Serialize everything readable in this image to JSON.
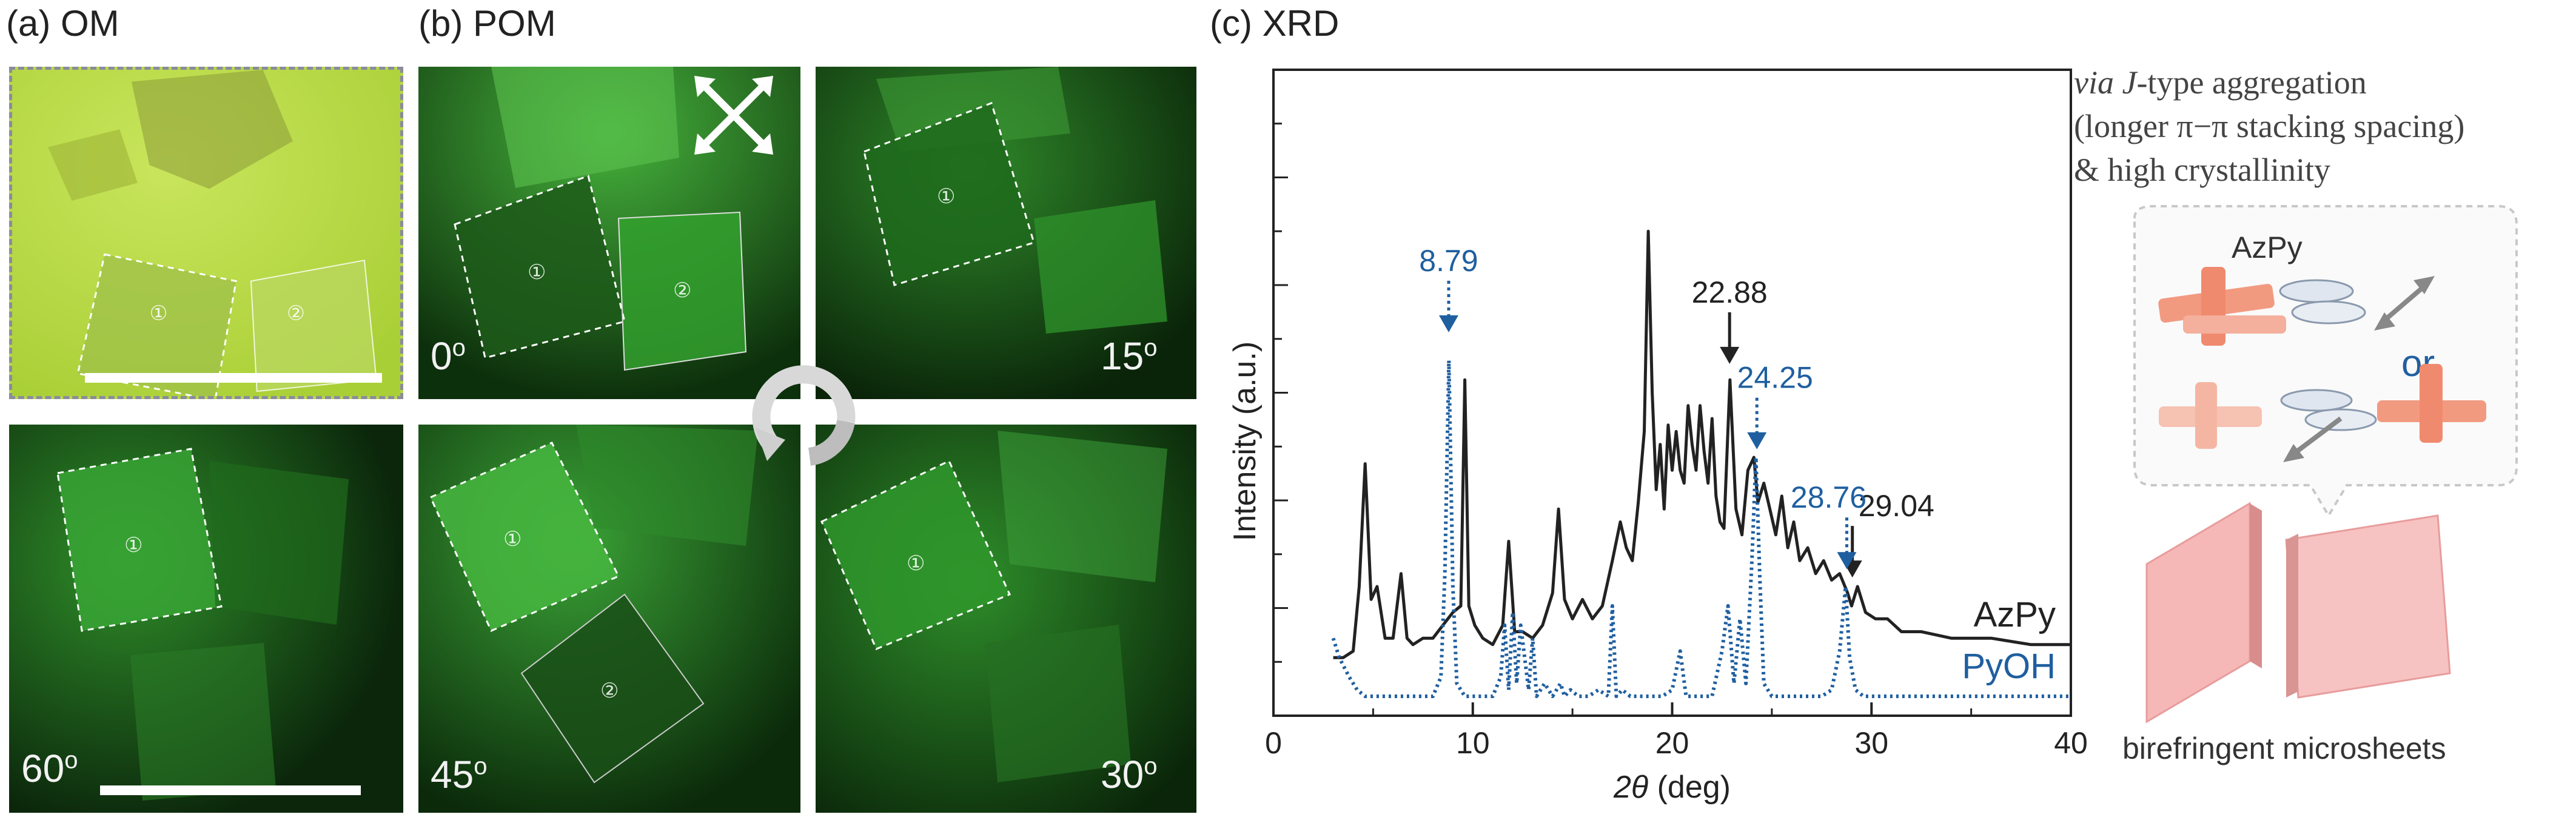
{
  "panels": {
    "a_label": "(a) OM",
    "b_label": "(b) POM",
    "c_label": "(c) XRD"
  },
  "micro": {
    "marker_1": "①",
    "marker_2": "②",
    "angles": [
      "0",
      "15",
      "30",
      "45",
      "60"
    ],
    "degree_symbol": "o"
  },
  "schematic": {
    "line1_italic": "via J",
    "line1_rest": "-type aggregation",
    "line2": "(longer π−π stacking spacing)",
    "line3": "& high crystallinity",
    "azpy": "AzPy",
    "or": "or",
    "caption": "birefringent microsheets"
  },
  "colors": {
    "azpy": "#222222",
    "pyoh": "#1f5fa0"
  },
  "chart_data": {
    "type": "line",
    "title": "XRD",
    "xlabel_italic": "2θ",
    "xlabel_unit": " (deg)",
    "ylabel": "Intensity (a.u.)",
    "xlim": [
      0,
      40
    ],
    "ylim": [
      0,
      100
    ],
    "x_ticks": [
      "0",
      "10",
      "20",
      "30",
      "40"
    ],
    "series": [
      {
        "name": "AzPy",
        "style": "solid",
        "x": [
          3.0,
          3.5,
          4.0,
          4.3,
          4.6,
          4.9,
          5.2,
          5.6,
          6.0,
          6.4,
          6.7,
          7.0,
          7.5,
          8.0,
          8.5,
          9.0,
          9.4,
          9.6,
          9.8,
          10.1,
          10.5,
          11.0,
          11.5,
          11.8,
          12.1,
          12.5,
          13.0,
          13.5,
          14.0,
          14.3,
          14.6,
          15.0,
          15.5,
          16.0,
          16.5,
          17.0,
          17.4,
          17.7,
          18.0,
          18.3,
          18.6,
          18.8,
          19.0,
          19.2,
          19.4,
          19.6,
          19.8,
          20.0,
          20.2,
          20.4,
          20.6,
          20.8,
          21.0,
          21.2,
          21.4,
          21.6,
          21.8,
          22.0,
          22.2,
          22.4,
          22.6,
          22.9,
          23.2,
          23.5,
          23.8,
          24.1,
          24.3,
          24.6,
          24.9,
          25.2,
          25.5,
          25.8,
          26.1,
          26.4,
          26.8,
          27.2,
          27.6,
          28.0,
          28.4,
          28.8,
          29.0,
          29.3,
          29.7,
          30.2,
          30.8,
          31.5,
          32.5,
          34.0,
          36.0,
          38.0,
          40.0
        ],
        "y": [
          9,
          9,
          10,
          20,
          39,
          18,
          20,
          12,
          12,
          22,
          12,
          11,
          12,
          12,
          14,
          16,
          17,
          52,
          17,
          14,
          12,
          11,
          14,
          27,
          13,
          13,
          12,
          14,
          19,
          32,
          18,
          15,
          18,
          15,
          17,
          24,
          30,
          26,
          24,
          33,
          44,
          75,
          50,
          35,
          42,
          32,
          45,
          38,
          44,
          38,
          36,
          48,
          42,
          38,
          48,
          41,
          36,
          46,
          34,
          30,
          29,
          52,
          32,
          28,
          38,
          40,
          33,
          36,
          32,
          28,
          34,
          26,
          30,
          24,
          26,
          22,
          24,
          21,
          22,
          19,
          17,
          20,
          16,
          15,
          15,
          13,
          13,
          12,
          12,
          11,
          11
        ]
      },
      {
        "name": "PyOH",
        "style": "dotted",
        "x": [
          3.0,
          3.3,
          3.8,
          4.2,
          4.6,
          5.0,
          5.4,
          5.8,
          6.3,
          7.0,
          7.5,
          8.0,
          8.4,
          8.6,
          8.8,
          9.0,
          9.2,
          9.6,
          10.0,
          10.5,
          11.0,
          11.4,
          11.6,
          11.8,
          12.0,
          12.2,
          12.4,
          12.8,
          13.0,
          13.2,
          13.6,
          14.0,
          14.4,
          14.6,
          14.9,
          15.3,
          15.8,
          16.3,
          16.8,
          17.0,
          17.2,
          17.5,
          17.9,
          18.4,
          19.0,
          19.5,
          20.0,
          20.4,
          20.7,
          21.0,
          21.5,
          22.0,
          22.5,
          22.8,
          23.1,
          23.4,
          23.7,
          24.0,
          24.2,
          24.4,
          24.6,
          25.0,
          25.5,
          26.0,
          26.5,
          27.0,
          27.5,
          28.0,
          28.4,
          28.7,
          28.9,
          29.2,
          29.6,
          30.0,
          31.0,
          32.0,
          33.0,
          34.0,
          35.0,
          36.5,
          38.0,
          40.0
        ],
        "y": [
          12,
          9,
          6,
          4,
          3,
          3,
          3,
          3,
          3,
          3,
          3,
          3,
          6,
          22,
          55,
          20,
          5,
          3,
          3,
          3,
          3,
          6,
          14,
          4,
          16,
          5,
          14,
          4,
          12,
          3,
          5,
          3,
          5,
          3,
          4,
          3,
          3,
          4,
          3,
          17,
          3,
          4,
          3,
          3,
          3,
          3,
          4,
          10,
          3,
          3,
          3,
          3,
          10,
          17,
          5,
          15,
          5,
          24,
          40,
          21,
          5,
          3,
          3,
          3,
          3,
          3,
          3,
          4,
          10,
          20,
          9,
          4,
          3,
          3,
          3,
          3,
          3,
          3,
          3,
          3,
          3,
          3
        ]
      }
    ],
    "annotations": [
      {
        "label": "22.88",
        "x": 22.88,
        "series": "AzPy"
      },
      {
        "label": "29.04",
        "x": 29.04,
        "series": "AzPy"
      },
      {
        "label": "8.79",
        "x": 8.79,
        "series": "PyOH"
      },
      {
        "label": "24.25",
        "x": 24.25,
        "series": "PyOH"
      },
      {
        "label": "28.76",
        "x": 28.76,
        "series": "PyOH"
      }
    ]
  }
}
